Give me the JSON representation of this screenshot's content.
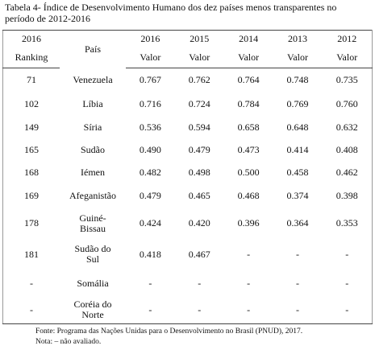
{
  "caption": "Tabela 4- Índice de Desenvolvimento  Humano dos dez países menos transparentes  no período de 2012-2016",
  "table": {
    "header": {
      "rank_year": "2016",
      "rank_label": "Ranking",
      "country": "País",
      "years": [
        "2016",
        "2015",
        "2014",
        "2013",
        "2012"
      ],
      "unit": [
        "Valor",
        "Valor",
        "Valor",
        "Valor",
        "Valor"
      ]
    },
    "rows": [
      [
        "71",
        "Venezuela",
        "0.767",
        "0.762",
        "0.764",
        "0.748",
        "0.735"
      ],
      [
        "102",
        "Líbia",
        "0.716",
        "0.724",
        "0.784",
        "0.769",
        "0.760"
      ],
      [
        "149",
        "Síria",
        "0.536",
        "0.594",
        "0.658",
        "0.648",
        "0.632"
      ],
      [
        "165",
        "Sudão",
        "0.490",
        "0.479",
        "0.473",
        "0.414",
        "0.408"
      ],
      [
        "168",
        "Iémen",
        "0.482",
        "0.498",
        "0.500",
        "0.458",
        "0.462"
      ],
      [
        "169",
        "Afeganistão",
        "0.479",
        "0.465",
        "0.468",
        "0.374",
        "0.398"
      ],
      [
        "178",
        "Guiné-Bissau",
        "0.424",
        "0.420",
        "0.396",
        "0.364",
        "0.353"
      ],
      [
        "181",
        "Sudão do Sul",
        "0.418",
        "0.467",
        "-",
        "-",
        "-"
      ],
      [
        "-",
        "Somália",
        "-",
        "-",
        "-",
        "-",
        "-"
      ],
      [
        "-",
        "Coréia do Norte",
        "-",
        "-",
        "-",
        "-",
        "-"
      ]
    ]
  },
  "footer": {
    "source": "Fonte: Programa das Nações Unidas para o Desenvolvimento  no Brasil (PNUD), 2017.",
    "note": "Nota: – não avaliado."
  }
}
